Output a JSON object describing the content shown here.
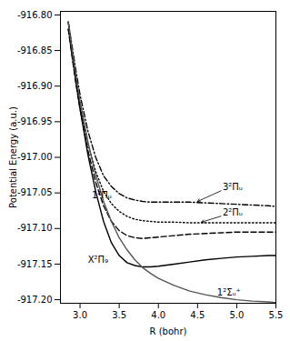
{
  "chart_data": {
    "type": "line",
    "xlabel": "R (bohr)",
    "ylabel": "Potential Energy (a.u.)",
    "xlim": [
      2.75,
      5.5
    ],
    "ylim": [
      -917.205,
      -916.795
    ],
    "xticks": [
      {
        "value": 3.0,
        "label": "3.0"
      },
      3.5,
      {
        "value": 4.0,
        "label": "4.0"
      },
      4.5,
      {
        "value": 5.0,
        "label": "5.0"
      },
      5.5
    ],
    "yticks": [
      {
        "value": -916.8,
        "label": "-916.80"
      },
      -916.85,
      {
        "value": -916.9,
        "label": "-916.90"
      },
      -916.95,
      {
        "value": -917.0,
        "label": "-917.00"
      },
      -917.05,
      {
        "value": -917.1,
        "label": "-917.10"
      },
      -917.15,
      {
        "value": -917.2,
        "label": "-917.20"
      }
    ],
    "x": [
      2.85,
      2.9,
      2.95,
      3.0,
      3.1,
      3.2,
      3.3,
      3.4,
      3.5,
      3.6,
      3.7,
      3.8,
      3.9,
      4.0,
      4.2,
      4.4,
      4.6,
      4.8,
      5.0,
      5.2,
      5.4,
      5.5
    ],
    "series": [
      {
        "color": "#000000",
        "line_style": "dashdot",
        "values": [
          -916.81,
          -916.845,
          -916.88,
          -916.912,
          -916.963,
          -917.0,
          -917.026,
          -917.041,
          -917.051,
          -917.057,
          -917.06,
          -917.062,
          -917.063,
          -917.063,
          -917.063,
          -917.063,
          -917.064,
          -917.065,
          -917.066,
          -917.067,
          -917.068,
          -917.069
        ]
      },
      {
        "color": "#000000",
        "line_style": "dotted",
        "values": [
          -916.82,
          -916.858,
          -916.895,
          -916.927,
          -916.98,
          -917.02,
          -917.048,
          -917.065,
          -917.076,
          -917.083,
          -917.087,
          -917.089,
          -917.09,
          -917.091,
          -917.091,
          -917.092,
          -917.092,
          -917.092,
          -917.092,
          -917.092,
          -917.092,
          -917.092
        ]
      },
      {
        "color": "#000000",
        "line_style": "dashed",
        "values": [
          -916.82,
          -916.86,
          -916.898,
          -916.932,
          -916.99,
          -917.035,
          -917.068,
          -917.09,
          -917.103,
          -917.11,
          -917.113,
          -917.114,
          -917.113,
          -917.112,
          -917.11,
          -917.108,
          -917.107,
          -917.106,
          -917.105,
          -917.105,
          -917.105,
          -917.105
        ]
      },
      {
        "color": "#000000",
        "line_style": "solid",
        "values": [
          -916.81,
          -916.855,
          -916.896,
          -916.932,
          -916.996,
          -917.048,
          -917.09,
          -917.12,
          -917.138,
          -917.148,
          -917.152,
          -917.154,
          -917.154,
          -917.153,
          -917.15,
          -917.147,
          -917.144,
          -917.142,
          -917.14,
          -917.139,
          -917.138,
          -917.138
        ]
      },
      {
        "color": "#555555",
        "line_style": "solid",
        "values": [
          -916.81,
          -916.85,
          -916.887,
          -916.921,
          -916.978,
          -917.025,
          -917.062,
          -917.09,
          -917.113,
          -917.13,
          -917.144,
          -917.155,
          -917.163,
          -917.17,
          -917.18,
          -917.188,
          -917.193,
          -917.197,
          -917.2,
          -917.202,
          -917.203,
          -917.204
        ]
      }
    ],
    "annotations": [
      {
        "text": "1²Πᵤ",
        "x": 3.15,
        "y": -917.058
      },
      {
        "text": "X²Π₉",
        "x": 3.1,
        "y": -917.148
      },
      {
        "text": "3²Πᵤ",
        "x": 4.82,
        "y": -917.046,
        "arrow_to": [
          4.5,
          -917.062
        ]
      },
      {
        "text": "2²Πᵤ",
        "x": 4.82,
        "y": -917.082,
        "arrow_to": [
          4.55,
          -917.091
        ]
      },
      {
        "text": "1²Σᵤ⁺",
        "x": 4.75,
        "y": -917.194
      }
    ]
  }
}
